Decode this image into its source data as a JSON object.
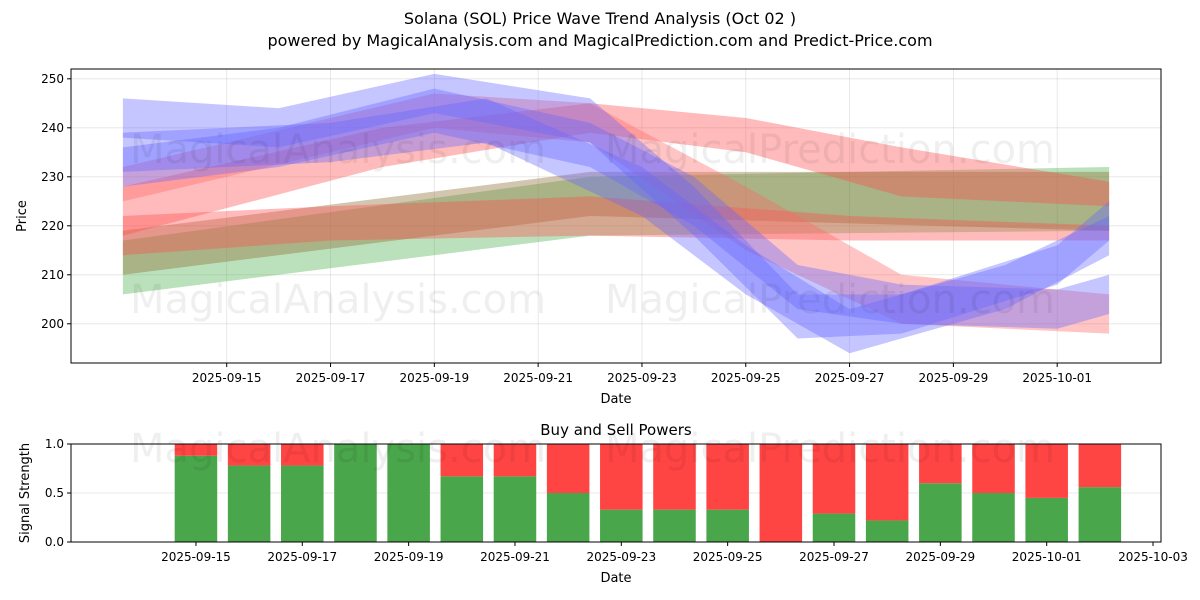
{
  "header": {
    "title": "Solana (SOL) Price Wave Trend Analysis (Oct 02 )",
    "subtitle": "powered by MagicalAnalysis.com and MagicalPrediction.com and Predict-Price.com"
  },
  "watermarks": [
    "MagicalAnalysis.com",
    "MagicalPrediction.com"
  ],
  "chart_data": [
    {
      "type": "area",
      "title": "",
      "xlabel": "Date",
      "ylabel": "Price",
      "xlim": [
        "2025-09-12",
        "2025-10-03"
      ],
      "ylim": [
        192,
        252
      ],
      "yticks": [
        200,
        210,
        220,
        230,
        240,
        250
      ],
      "xtick_labels": [
        "2025-09-15",
        "2025-09-17",
        "2025-09-19",
        "2025-09-21",
        "2025-09-23",
        "2025-09-25",
        "2025-09-27",
        "2025-09-29",
        "2025-10-01"
      ],
      "grid": true,
      "colors": {
        "blue": "#6666ff",
        "red": "#ff4d4d",
        "green": "#4caf50",
        "brown": "#8b4513"
      },
      "bands": [
        {
          "name": "green-trend",
          "color": "#4caf50",
          "x": [
            "2025-09-13",
            "2025-09-22",
            "2025-10-02"
          ],
          "low": [
            206,
            218,
            219
          ],
          "high": [
            217,
            230,
            232
          ]
        },
        {
          "name": "brown-trend",
          "color": "#8b6a30",
          "x": [
            "2025-09-13",
            "2025-09-22",
            "2025-10-02"
          ],
          "low": [
            210,
            222,
            219
          ],
          "high": [
            219,
            231,
            231
          ]
        },
        {
          "name": "red-lower",
          "color": "#ff4d4d",
          "x": [
            "2025-09-13",
            "2025-09-17",
            "2025-09-22",
            "2025-09-27",
            "2025-10-02"
          ],
          "low": [
            214,
            217,
            218,
            217,
            217
          ],
          "high": [
            222,
            224,
            226,
            222,
            220
          ]
        },
        {
          "name": "red-upper",
          "color": "#ff4d4d",
          "x": [
            "2025-09-13",
            "2025-09-18",
            "2025-09-22",
            "2025-09-25",
            "2025-09-28",
            "2025-10-02"
          ],
          "low": [
            218,
            232,
            239,
            235,
            226,
            224
          ],
          "high": [
            228,
            240,
            245,
            242,
            236,
            229
          ]
        },
        {
          "name": "red-wave",
          "color": "#ff6666",
          "x": [
            "2025-09-13",
            "2025-09-19",
            "2025-09-22",
            "2025-09-25",
            "2025-09-28",
            "2025-10-02"
          ],
          "low": [
            225,
            240,
            237,
            215,
            200,
            198
          ],
          "high": [
            232,
            247,
            245,
            228,
            210,
            206
          ]
        },
        {
          "name": "blue-wave-1",
          "color": "#6666ff",
          "x": [
            "2025-09-13",
            "2025-09-16",
            "2025-09-19",
            "2025-09-22",
            "2025-09-24",
            "2025-09-26",
            "2025-09-28",
            "2025-10-01",
            "2025-10-02"
          ],
          "low": [
            238,
            236,
            243,
            237,
            218,
            197,
            198,
            208,
            217
          ],
          "high": [
            246,
            244,
            251,
            246,
            228,
            206,
            206,
            216,
            225
          ]
        },
        {
          "name": "blue-wave-2",
          "color": "#6666ff",
          "x": [
            "2025-09-13",
            "2025-09-16",
            "2025-09-19",
            "2025-09-22",
            "2025-09-24",
            "2025-09-26",
            "2025-09-28",
            "2025-10-01",
            "2025-10-02"
          ],
          "low": [
            228,
            232,
            239,
            232,
            220,
            203,
            200,
            199,
            202
          ],
          "high": [
            236,
            240,
            248,
            241,
            230,
            212,
            208,
            207,
            210
          ]
        },
        {
          "name": "blue-wave-3",
          "color": "#6666ff",
          "x": [
            "2025-09-13",
            "2025-09-17",
            "2025-09-20",
            "2025-09-23",
            "2025-09-25",
            "2025-09-27",
            "2025-09-30",
            "2025-10-02"
          ],
          "low": [
            231,
            233,
            237,
            222,
            206,
            194,
            203,
            214
          ],
          "high": [
            239,
            241,
            246,
            232,
            216,
            203,
            212,
            222
          ]
        }
      ]
    },
    {
      "type": "bar",
      "title": "Buy and Sell Powers",
      "xlabel": "Date",
      "ylabel": "Signal Strength",
      "ylim": [
        0,
        1
      ],
      "yticks": [
        "0.0",
        "0.5",
        "1.0"
      ],
      "xtick_labels": [
        "2025-09-15",
        "2025-09-17",
        "2025-09-19",
        "2025-09-21",
        "2025-09-23",
        "2025-09-25",
        "2025-09-27",
        "2025-09-29",
        "2025-10-01",
        "2025-10-03"
      ],
      "categories": [
        "2025-09-15",
        "2025-09-16",
        "2025-09-17",
        "2025-09-18",
        "2025-09-19",
        "2025-09-20",
        "2025-09-21",
        "2025-09-22",
        "2025-09-23",
        "2025-09-24",
        "2025-09-25",
        "2025-09-26",
        "2025-09-27",
        "2025-09-28",
        "2025-09-29",
        "2025-09-30",
        "2025-10-01",
        "2025-10-02"
      ],
      "series": [
        {
          "name": "Buy",
          "color": "#4aa64a",
          "values": [
            0.88,
            0.78,
            0.78,
            1.0,
            1.0,
            0.67,
            0.67,
            0.5,
            0.33,
            0.33,
            0.33,
            0.0,
            0.29,
            0.22,
            0.6,
            0.5,
            0.45,
            0.56
          ]
        },
        {
          "name": "Sell",
          "color": "#ff4444",
          "values": [
            0.12,
            0.22,
            0.22,
            0.0,
            0.0,
            0.33,
            0.33,
            0.5,
            0.67,
            0.67,
            0.67,
            1.0,
            0.71,
            0.78,
            0.4,
            0.5,
            0.55,
            0.44
          ]
        }
      ]
    }
  ]
}
